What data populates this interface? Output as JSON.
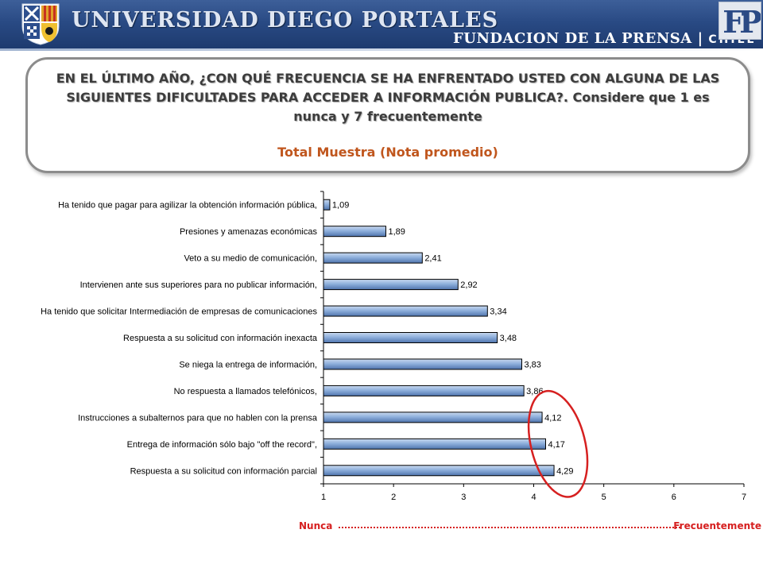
{
  "header": {
    "university": "UNIVERSIDAD DIEGO PORTALES",
    "foundation": "FUNDACION DE LA PRENSA",
    "separator": "|",
    "country": "CHILE",
    "logo_letters": "FP",
    "colors": {
      "bar_gradient_top": "#3d5f99",
      "bar_gradient_bottom": "#1d3a6e"
    }
  },
  "question": {
    "line1": "EN EL ÚLTIMO AÑO, ¿CON QUÉ FRECUENCIA SE HA ENFRENTADO USTED CON ALGUNA DE LAS SIGUIENTES DIFICULTADES PARA ACCEDER A INFORMACIÓN PUBLICA?. Considere que 1 es nunca y 7 frecuentemente",
    "subtitle": "Total Muestra (Nota promedio)"
  },
  "scale_legend": {
    "low": "Nunca",
    "high": "Frecuentemente",
    "color": "#d62020"
  },
  "chart_data": {
    "type": "bar",
    "orientation": "horizontal",
    "categories": [
      "Ha tenido que pagar para agilizar la obtención información pública,",
      "Presiones y amenazas económicas",
      "Veto a su medio de comunicación,",
      "Intervienen ante sus superiores para no publicar información,",
      "Ha tenido que solicitar  Intermediación de empresas de comunicaciones",
      "Respuesta a su solicitud con información inexacta",
      "Se niega la entrega de información,",
      "No respuesta a llamados telefónicos,",
      "Instrucciones a subalternos para que no hablen con la prensa",
      "Entrega de información sólo bajo \"off the record\",",
      "Respuesta a su solicitud con información parcial"
    ],
    "values": [
      1.09,
      1.89,
      2.41,
      2.92,
      3.34,
      3.48,
      3.83,
      3.86,
      4.12,
      4.17,
      4.29
    ],
    "value_labels": [
      "1,09",
      "1,89",
      "2,41",
      "2,92",
      "3,34",
      "3,48",
      "3,83",
      "3,86",
      "4,12",
      "4,17",
      "4,29"
    ],
    "xlim": [
      1,
      7
    ],
    "xticks": [
      "1",
      "2",
      "3",
      "4",
      "5",
      "6",
      "7"
    ],
    "grid": false,
    "highlight": {
      "shape": "ellipse",
      "color": "#d62020",
      "around_top_values": [
        4.12,
        4.17,
        4.29
      ]
    },
    "colors": {
      "bar_fill_light": "#b7cbe6",
      "bar_fill_dark": "#5b7fb8",
      "bar_stroke": "#000000"
    }
  }
}
